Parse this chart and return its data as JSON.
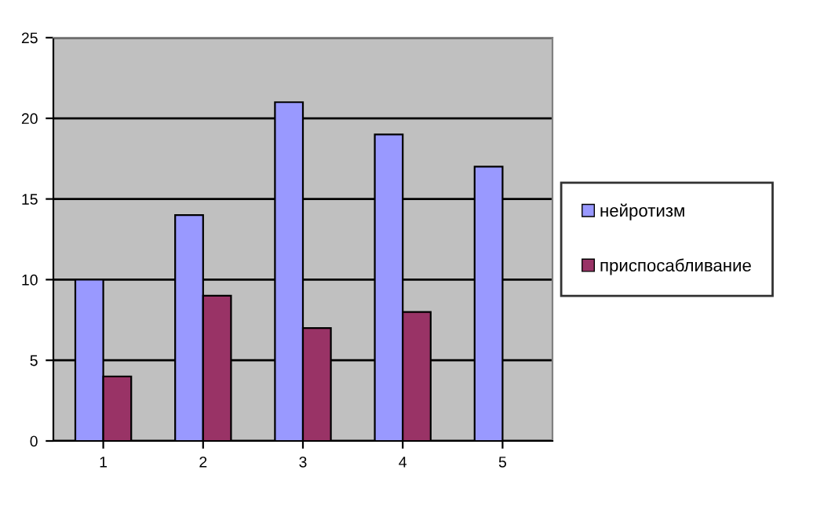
{
  "chart_data": {
    "type": "bar",
    "categories": [
      "1",
      "2",
      "3",
      "4",
      "5"
    ],
    "series": [
      {
        "name": "нейротизм",
        "color": "#9999ff",
        "values": [
          10,
          14,
          21,
          19,
          17
        ]
      },
      {
        "name": "приспосабливание",
        "color": "#993366",
        "values": [
          4,
          9,
          7,
          8,
          null
        ]
      }
    ],
    "ylim": [
      0,
      25
    ],
    "yticks": [
      0,
      5,
      10,
      15,
      20,
      25
    ],
    "grid": "y",
    "legend": "right"
  }
}
